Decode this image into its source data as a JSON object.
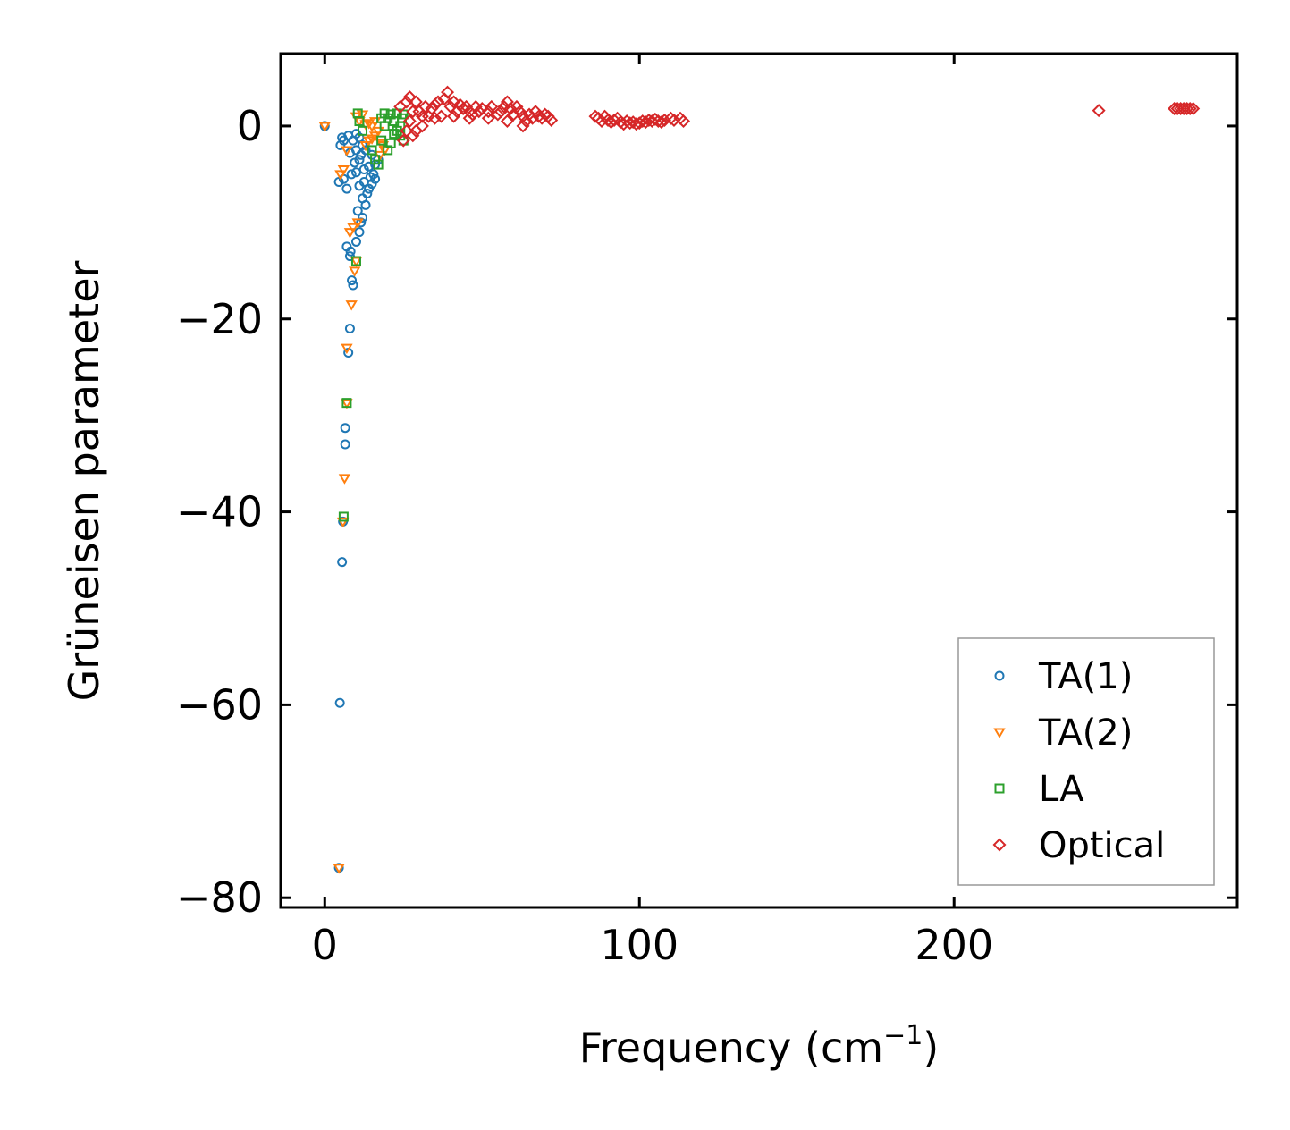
{
  "chart_data": {
    "type": "scatter",
    "title": "",
    "xlabel": "Frequency (cm",
    "xlabel_sup": "−1",
    "xlabel_suffix": ")",
    "ylabel": "Grüneisen parameter",
    "xlim": [
      -14,
      290
    ],
    "ylim": [
      -81,
      7.5
    ],
    "xticks": [
      0,
      100,
      200
    ],
    "xtick_labels": [
      "0",
      "100",
      "200"
    ],
    "yticks": [
      0,
      -20,
      -40,
      -60,
      -80
    ],
    "ytick_labels": [
      "0",
      "−20",
      "−40",
      "−60",
      "−80"
    ],
    "grid": false,
    "legend_position": "lower-right",
    "series": [
      {
        "name": "TA(1)",
        "marker": "circle",
        "color": "#1f77b4",
        "points": [
          [
            0,
            0
          ],
          [
            4.5,
            -76.9
          ],
          [
            4.8,
            -59.8
          ],
          [
            5.5,
            -45.2
          ],
          [
            5.8,
            -41
          ],
          [
            6.5,
            -33
          ],
          [
            6.5,
            -31.3
          ],
          [
            7.5,
            -23.5
          ],
          [
            8,
            -21
          ],
          [
            9,
            -16.5
          ],
          [
            8.6,
            -16
          ],
          [
            8,
            -13.5
          ],
          [
            8.2,
            -13
          ],
          [
            7,
            -12.5
          ],
          [
            10,
            -12
          ],
          [
            11,
            -11
          ],
          [
            11.5,
            -10
          ],
          [
            12,
            -9.5
          ],
          [
            10.5,
            -8.8
          ],
          [
            13,
            -8.2
          ],
          [
            12,
            -7.5
          ],
          [
            13.5,
            -7
          ],
          [
            14,
            -6.5
          ],
          [
            11,
            -6.2
          ],
          [
            15,
            -6
          ],
          [
            16,
            -5.5
          ],
          [
            15.5,
            -5
          ],
          [
            7,
            -6.5
          ],
          [
            6,
            -5.5
          ],
          [
            8.5,
            -5
          ],
          [
            10,
            -4.8
          ],
          [
            12.5,
            -4.5
          ],
          [
            14,
            -4.2
          ],
          [
            16,
            -4
          ],
          [
            17,
            -3.5
          ],
          [
            9.5,
            -3.8
          ],
          [
            11,
            -3.5
          ],
          [
            8,
            -2.8
          ],
          [
            10,
            -2.5
          ],
          [
            13,
            -2.5
          ],
          [
            15,
            -3
          ],
          [
            12,
            -2
          ],
          [
            5,
            -2
          ],
          [
            6,
            -1.5
          ],
          [
            9,
            -1.5
          ],
          [
            11,
            -1.2
          ],
          [
            7.5,
            -1
          ],
          [
            10,
            -0.8
          ],
          [
            5.5,
            -1.2
          ],
          [
            4.5,
            -5.8
          ],
          [
            12.5,
            -5.8
          ],
          [
            14.5,
            -5.3
          ],
          [
            11.5,
            -3
          ]
        ]
      },
      {
        "name": "TA(2)",
        "marker": "triangle-down",
        "color": "#ff7f0e",
        "points": [
          [
            0,
            0
          ],
          [
            4.5,
            -76.9
          ],
          [
            5.8,
            -41
          ],
          [
            6.3,
            -36.5
          ],
          [
            7,
            -28.7
          ],
          [
            7,
            -23
          ],
          [
            8.5,
            -18.5
          ],
          [
            9.5,
            -15
          ],
          [
            10,
            -14
          ],
          [
            8,
            -11
          ],
          [
            9,
            -10.5
          ],
          [
            10.5,
            -10
          ],
          [
            5,
            -5
          ],
          [
            6,
            -4.5
          ],
          [
            7,
            -2.5
          ],
          [
            13,
            -2
          ],
          [
            14,
            -1.5
          ],
          [
            15,
            -1.3
          ],
          [
            16,
            -1
          ],
          [
            17,
            -0.5
          ],
          [
            18,
            -1.8
          ],
          [
            19,
            -2.5
          ],
          [
            17.5,
            -3
          ],
          [
            18.5,
            -2
          ],
          [
            15,
            0
          ],
          [
            16,
            0.5
          ],
          [
            13,
            0.2
          ],
          [
            11,
            0.5
          ],
          [
            10,
            1
          ],
          [
            12,
            1.2
          ],
          [
            14,
            0.3
          ]
        ]
      },
      {
        "name": "LA",
        "marker": "square",
        "color": "#2ca02c",
        "points": [
          [
            6,
            -40.5
          ],
          [
            7,
            -28.7
          ],
          [
            10,
            -14
          ],
          [
            10.5,
            1.3
          ],
          [
            11,
            0.5
          ],
          [
            12,
            -0.5
          ],
          [
            15,
            -2.5
          ],
          [
            16,
            -3.5
          ],
          [
            17,
            -4
          ],
          [
            18,
            -1.5
          ],
          [
            19,
            0
          ],
          [
            20,
            0.8
          ],
          [
            21,
            1.2
          ],
          [
            22,
            0.5
          ],
          [
            23,
            -0.5
          ],
          [
            24,
            -1
          ],
          [
            25,
            -1.5
          ],
          [
            24,
            0
          ],
          [
            25,
            1.2
          ],
          [
            22,
            -0.8
          ],
          [
            21,
            -1.8
          ],
          [
            20,
            -2.5
          ],
          [
            19,
            1.3
          ],
          [
            18,
            0.8
          ],
          [
            23,
            1.3
          ],
          [
            24.5,
            0.8
          ]
        ]
      },
      {
        "name": "Optical",
        "marker": "diamond",
        "color": "#d62728",
        "points": [
          [
            25,
            -1.5
          ],
          [
            26,
            -0.5
          ],
          [
            27,
            0.5
          ],
          [
            28,
            1.5
          ],
          [
            28,
            -1
          ],
          [
            29,
            2.5
          ],
          [
            30,
            1.5
          ],
          [
            31,
            0
          ],
          [
            32,
            2
          ],
          [
            33,
            1
          ],
          [
            34,
            1.8
          ],
          [
            35,
            2.2
          ],
          [
            36,
            2.5
          ],
          [
            37,
            1
          ],
          [
            38,
            2.8
          ],
          [
            39,
            3.5
          ],
          [
            40,
            2
          ],
          [
            41,
            2.5
          ],
          [
            42,
            1.5
          ],
          [
            43,
            2.2
          ],
          [
            44,
            1.8
          ],
          [
            45,
            2
          ],
          [
            46,
            1.5
          ],
          [
            47,
            1.2
          ],
          [
            48,
            2
          ],
          [
            49,
            1.5
          ],
          [
            50,
            1.8
          ],
          [
            52,
            1.5
          ],
          [
            53,
            2
          ],
          [
            55,
            1.2
          ],
          [
            56,
            1.5
          ],
          [
            57,
            2
          ],
          [
            58,
            2.5
          ],
          [
            59,
            1.8
          ],
          [
            60,
            1.2
          ],
          [
            61,
            2
          ],
          [
            62,
            1.5
          ],
          [
            63,
            1
          ],
          [
            64,
            0.5
          ],
          [
            65,
            1.2
          ],
          [
            66,
            0.8
          ],
          [
            67,
            1.5
          ],
          [
            68,
            1
          ],
          [
            69,
            0.8
          ],
          [
            70,
            1.2
          ],
          [
            71,
            1
          ],
          [
            72,
            0.6
          ],
          [
            24,
            2
          ],
          [
            26,
            2.5
          ],
          [
            27,
            3
          ],
          [
            29,
            -0.5
          ],
          [
            31,
            1
          ],
          [
            35,
            0.8
          ],
          [
            41,
            1
          ],
          [
            46,
            0.8
          ],
          [
            52,
            0.8
          ],
          [
            58,
            0.5
          ],
          [
            63,
            0
          ],
          [
            86,
            1
          ],
          [
            87,
            0.8
          ],
          [
            88,
            0.5
          ],
          [
            89,
            1
          ],
          [
            90,
            0.6
          ],
          [
            91,
            0.4
          ],
          [
            92,
            0.6
          ],
          [
            93,
            0.8
          ],
          [
            94,
            0.4
          ],
          [
            95,
            0.2
          ],
          [
            96,
            0.5
          ],
          [
            97,
            0.3
          ],
          [
            98,
            0.4
          ],
          [
            99,
            0.2
          ],
          [
            100,
            0.3
          ],
          [
            101,
            0.5
          ],
          [
            102,
            0.4
          ],
          [
            103,
            0.6
          ],
          [
            104,
            0.5
          ],
          [
            105,
            0.7
          ],
          [
            106,
            0.5
          ],
          [
            107,
            0.4
          ],
          [
            108,
            0.6
          ],
          [
            110,
            0.8
          ],
          [
            111,
            0.6
          ],
          [
            113,
            0.8
          ],
          [
            114,
            0.5
          ],
          [
            246,
            1.6
          ],
          [
            270,
            1.8
          ],
          [
            271,
            1.8
          ],
          [
            272,
            1.8
          ],
          [
            273,
            1.8
          ],
          [
            274,
            1.8
          ],
          [
            275,
            1.8
          ],
          [
            276,
            1.8
          ]
        ]
      }
    ]
  }
}
